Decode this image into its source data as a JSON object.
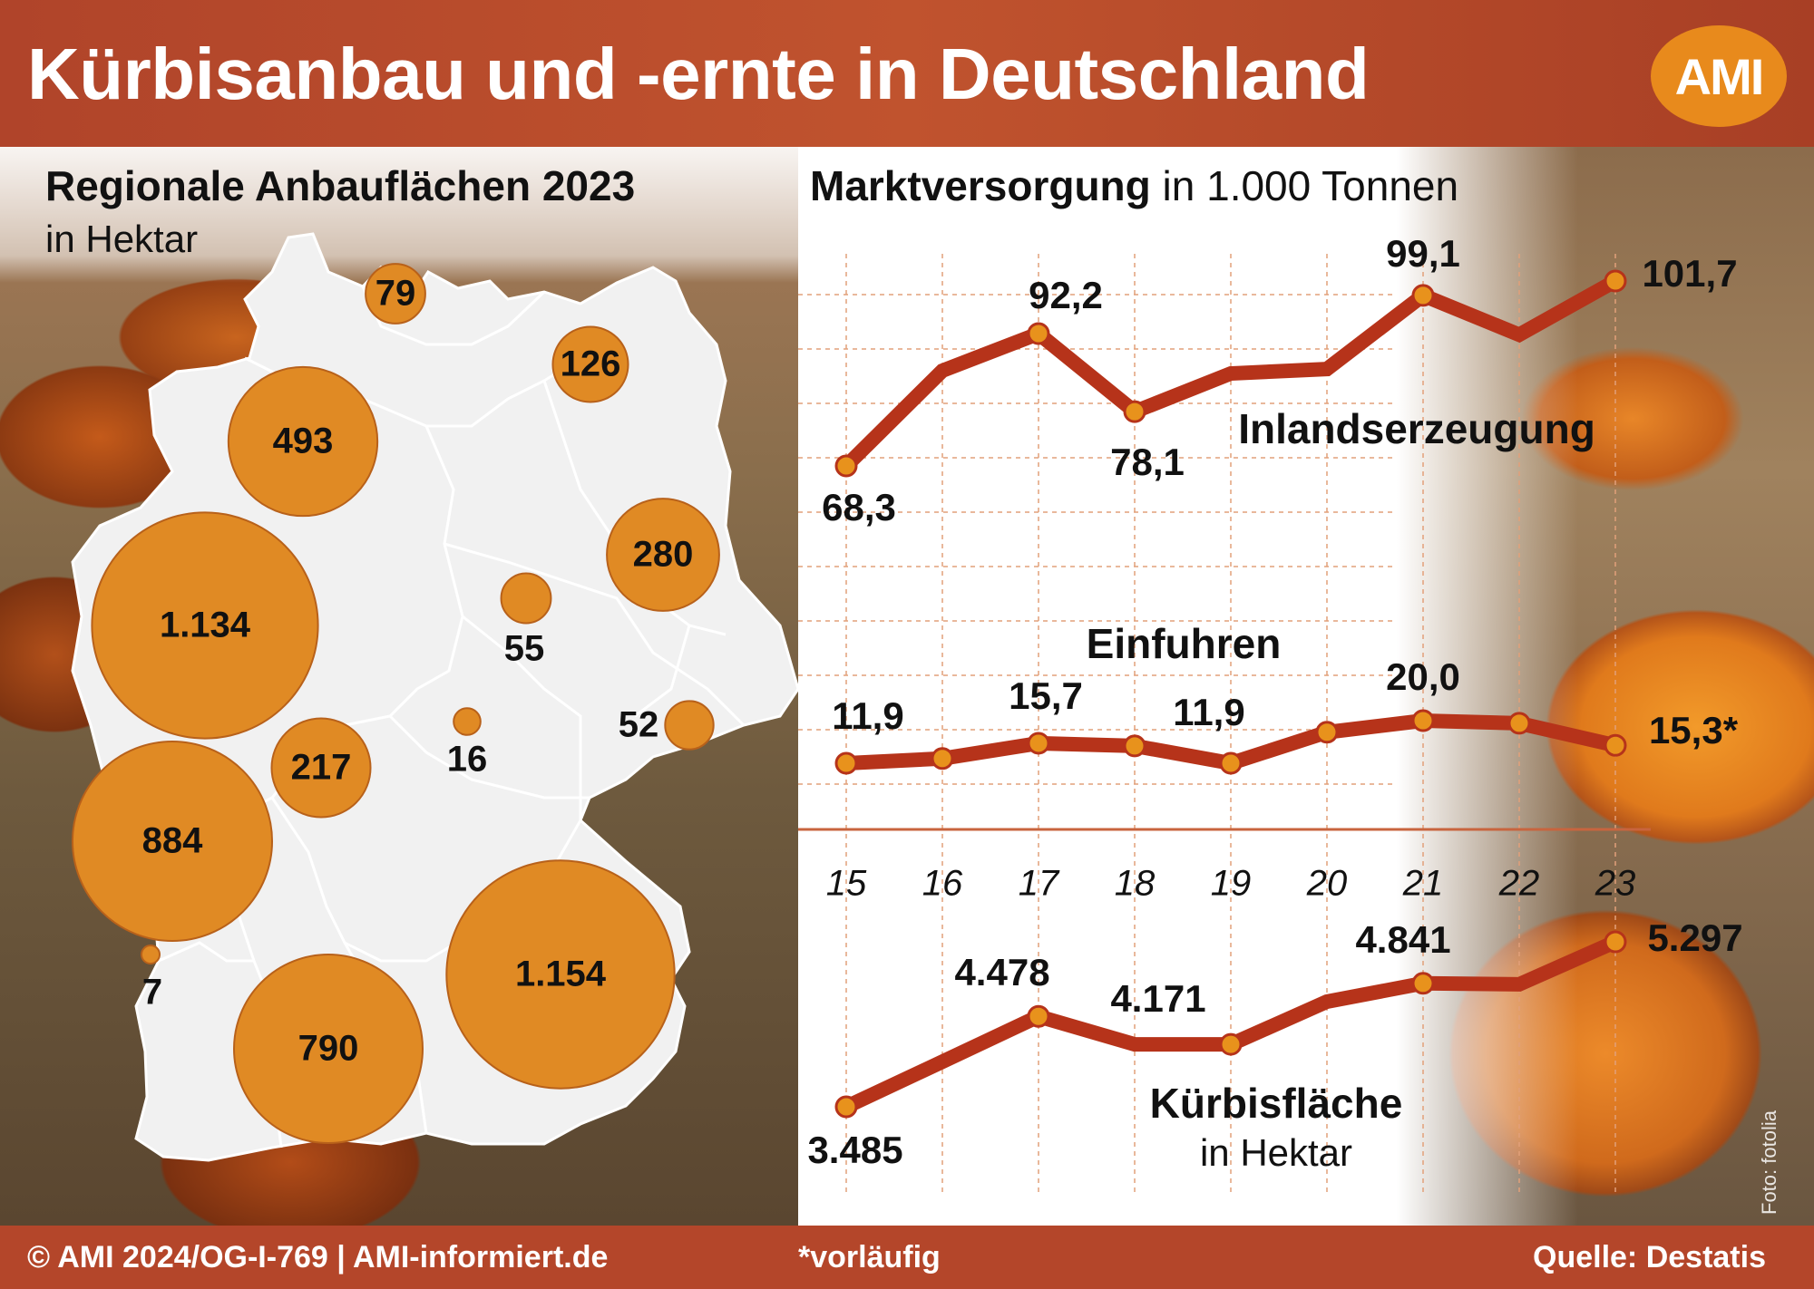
{
  "header": {
    "title": "Kürbisanbau und -ernte in Deutschland",
    "logo": "AMI"
  },
  "map": {
    "title": "Regionale Anbauflächen 2023",
    "unit": "in Hektar",
    "regions": [
      {
        "label": "79",
        "value": 79
      },
      {
        "label": "126",
        "value": 126
      },
      {
        "label": "493",
        "value": 493
      },
      {
        "label": "1.134",
        "value": 1134
      },
      {
        "label": "280",
        "value": 280
      },
      {
        "label": "55",
        "value": 55
      },
      {
        "label": "217",
        "value": 217
      },
      {
        "label": "16",
        "value": 16
      },
      {
        "label": "52",
        "value": 52
      },
      {
        "label": "884",
        "value": 884
      },
      {
        "label": "7",
        "value": 7
      },
      {
        "label": "790",
        "value": 790
      },
      {
        "label": "1.154",
        "value": 1154
      }
    ]
  },
  "chart_data": {
    "type": "line",
    "title": "Marktversorgung",
    "title_unit": "in 1.000 Tonnen",
    "categories": [
      "15",
      "16",
      "17",
      "18",
      "19",
      "20",
      "21",
      "22",
      "23"
    ],
    "grid": true,
    "series": [
      {
        "name": "Inlandserzeugung",
        "values": [
          68.3,
          85.5,
          92.2,
          78.1,
          85.0,
          85.8,
          99.1,
          92.0,
          101.7
        ],
        "labels": [
          "68,3",
          "",
          "92,2",
          "78,1",
          "",
          "",
          "99,1",
          "",
          "101,7"
        ]
      },
      {
        "name": "Einfuhren",
        "values": [
          11.9,
          12.8,
          15.7,
          15.2,
          11.9,
          17.8,
          20.0,
          19.5,
          15.3
        ],
        "labels": [
          "11,9",
          "",
          "15,7",
          "",
          "11,9",
          "",
          "20,0",
          "",
          "15,3*"
        ]
      },
      {
        "name": "Kürbisfläche",
        "unit": "in Hektar",
        "values": [
          3485,
          3980,
          4478,
          4171,
          4171,
          4640,
          4841,
          4830,
          5297
        ],
        "labels": [
          "3.485",
          "",
          "4.478",
          "",
          "4.171",
          "",
          "4.841",
          "",
          "5.297"
        ]
      }
    ],
    "colors": {
      "line": "#b6331a",
      "marker": "#e8921c",
      "grid": "#e2a07a"
    }
  },
  "footer": {
    "copyright": "© AMI 2024/OG-I-769 | AMI-informiert.de",
    "note": "*vorläufig",
    "source": "Quelle: Destatis"
  },
  "photo_credit": "Foto: fotolia"
}
